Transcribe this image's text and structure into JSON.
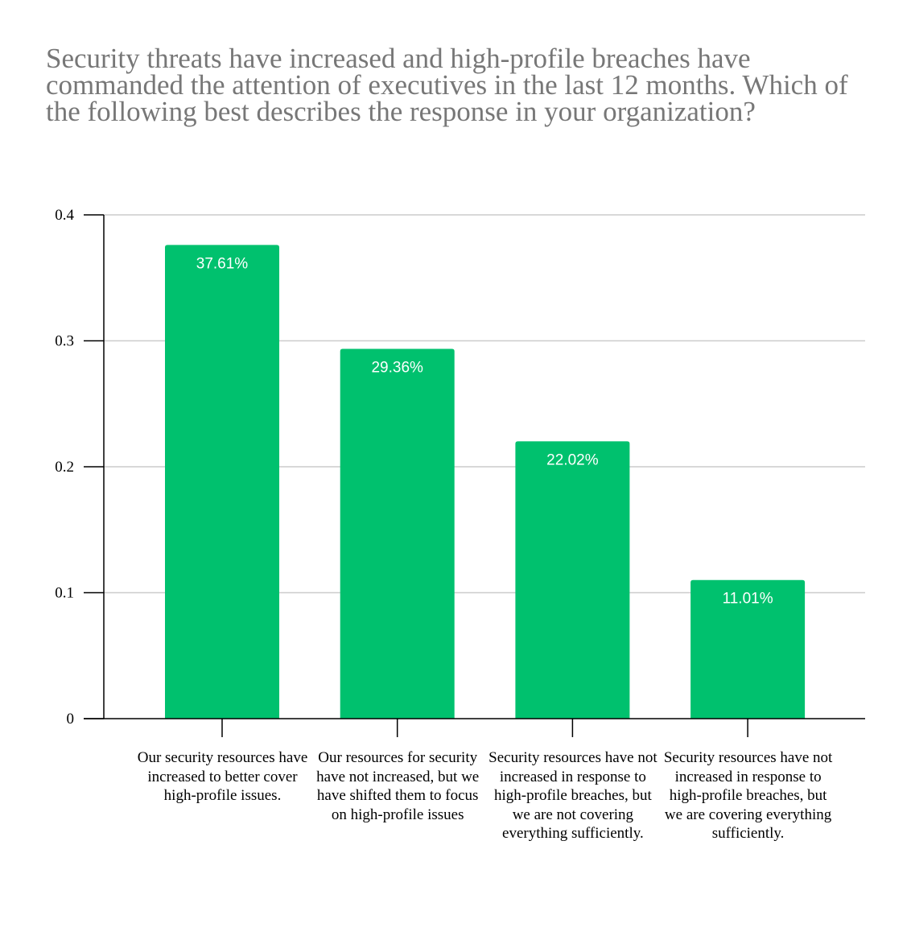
{
  "chart_data": {
    "type": "bar",
    "title": "Security threats have increased and high-profile breaches have commanded the attention of executives in the last 12 months. Which of the following best describes the response in your organization?",
    "categories": [
      "Our security resources have increased to better cover high-profile issues.",
      "Our resources for security have not increased, but we have shifted them to focus on high-profile issues",
      "Security resources have not increased in response to high-profile breaches, but we are not covering everything sufficiently.",
      "Security resources have not increased in response to high-profile breaches, but we are covering everything sufficiently."
    ],
    "values": [
      0.3761,
      0.2936,
      0.2202,
      0.1101
    ],
    "data_labels": [
      "37.61%",
      "29.36%",
      "22.02%",
      "11.01%"
    ],
    "xlabel": "",
    "ylabel": "",
    "ylim": [
      0,
      0.4
    ],
    "yticks": [
      "0",
      "0.1",
      "0.2",
      "0.3",
      "0.4"
    ],
    "grid": true,
    "bar_color": "#00C16E"
  }
}
